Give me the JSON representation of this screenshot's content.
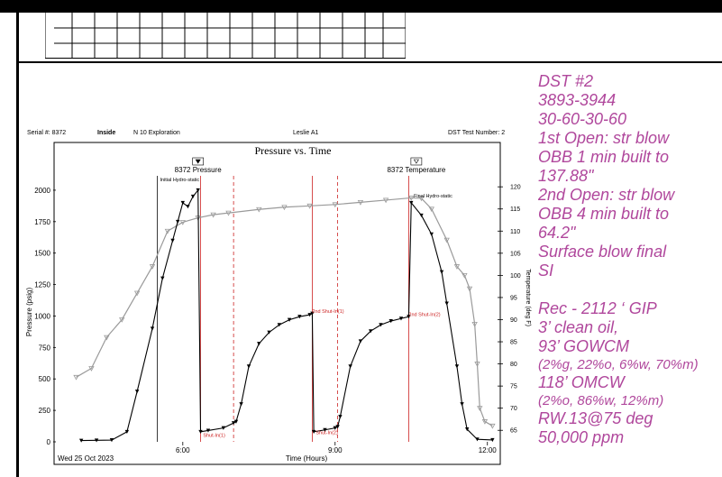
{
  "header": {
    "serial": "Serial #:  8372",
    "inside": "Inside",
    "company": "N 10 Exploration",
    "lease": "Leslie A1",
    "dst_test": "DST Test Number: 2"
  },
  "notes": [
    {
      "text": "DST #2",
      "size": "big"
    },
    {
      "text": "3893-3944",
      "size": "big"
    },
    {
      "text": "30-60-30-60",
      "size": "big"
    },
    {
      "text": "1st Open: str blow",
      "size": "big"
    },
    {
      "text": "OBB 1 min built to",
      "size": "big"
    },
    {
      "text": "137.88\"",
      "size": "big"
    },
    {
      "text": "2nd Open: str blow",
      "size": "big"
    },
    {
      "text": "OBB 4 min built to",
      "size": "big"
    },
    {
      "text": "64.2\"",
      "size": "big"
    },
    {
      "text": "Surface blow final",
      "size": "big"
    },
    {
      "text": "SI",
      "size": "big"
    },
    {
      "text": "",
      "size": "big"
    },
    {
      "text": "Rec - 2112 ‘ GIP",
      "size": "big"
    },
    {
      "text": "3’ clean oil,",
      "size": "big"
    },
    {
      "text": "93’ GOWCM",
      "size": "big"
    },
    {
      "text": "(2%g, 22%o, 6%w, 70%m)",
      "size": "small"
    },
    {
      "text": "118’ OMCW",
      "size": "big"
    },
    {
      "text": "(2%o, 86%w, 12%m)",
      "size": "small"
    },
    {
      "text": "RW.13@75 deg",
      "size": "big"
    },
    {
      "text": "50,000 ppm",
      "size": "big"
    }
  ],
  "chart_data": {
    "type": "line",
    "title": "Pressure vs. Time",
    "xlabel": "Time (Hours)",
    "ylabel": "Pressure (psig)",
    "y2label": "Temperature (deg F)",
    "date_label": "Wed 25 Oct 2023",
    "xlim": [
      3.5,
      12.2
    ],
    "ylim": [
      0,
      2150
    ],
    "y2lim": [
      62.4,
      123.5
    ],
    "x_ticks": [
      {
        "value": 6,
        "label": "6:00"
      },
      {
        "value": 9,
        "label": "9:00"
      },
      {
        "value": 12,
        "label": "12:00"
      }
    ],
    "y_ticks": [
      0,
      250,
      500,
      750,
      1000,
      1250,
      1500,
      1750,
      2000
    ],
    "y2_ticks": [
      65,
      70,
      75,
      80,
      85,
      90,
      95,
      100,
      105,
      110,
      115,
      120
    ],
    "series": [
      {
        "name": "8372 Pressure",
        "color": "#000000",
        "points": [
          [
            4.0,
            10
          ],
          [
            4.3,
            12
          ],
          [
            4.6,
            14
          ],
          [
            4.9,
            80
          ],
          [
            5.1,
            400
          ],
          [
            5.4,
            900
          ],
          [
            5.6,
            1300
          ],
          [
            5.8,
            1600
          ],
          [
            5.9,
            1750
          ],
          [
            6.0,
            1900
          ],
          [
            6.1,
            1870
          ],
          [
            6.2,
            1950
          ],
          [
            6.3,
            2000
          ],
          [
            6.35,
            80
          ],
          [
            6.5,
            90
          ],
          [
            6.8,
            110
          ],
          [
            7.0,
            150
          ],
          [
            7.05,
            160
          ],
          [
            7.15,
            300
          ],
          [
            7.3,
            600
          ],
          [
            7.5,
            780
          ],
          [
            7.7,
            870
          ],
          [
            7.9,
            930
          ],
          [
            8.1,
            970
          ],
          [
            8.3,
            995
          ],
          [
            8.5,
            1010
          ],
          [
            8.55,
            1020
          ],
          [
            8.58,
            80
          ],
          [
            8.8,
            95
          ],
          [
            9.0,
            110
          ],
          [
            9.05,
            120
          ],
          [
            9.1,
            200
          ],
          [
            9.3,
            600
          ],
          [
            9.5,
            800
          ],
          [
            9.7,
            880
          ],
          [
            9.9,
            930
          ],
          [
            10.1,
            960
          ],
          [
            10.3,
            980
          ],
          [
            10.45,
            995
          ],
          [
            10.5,
            1900
          ],
          [
            10.7,
            1800
          ],
          [
            10.9,
            1650
          ],
          [
            11.1,
            1350
          ],
          [
            11.2,
            1100
          ],
          [
            11.4,
            600
          ],
          [
            11.5,
            300
          ],
          [
            11.6,
            100
          ],
          [
            11.8,
            20
          ],
          [
            12.1,
            15
          ]
        ]
      },
      {
        "name": "8372 Temperature",
        "color": "#9a9a9a",
        "points": [
          [
            3.9,
            77
          ],
          [
            4.2,
            79
          ],
          [
            4.5,
            86
          ],
          [
            4.8,
            90
          ],
          [
            5.1,
            96
          ],
          [
            5.4,
            102
          ],
          [
            5.7,
            110
          ],
          [
            6.0,
            112
          ],
          [
            6.3,
            113
          ],
          [
            6.6,
            113.7
          ],
          [
            6.9,
            114.1
          ],
          [
            7.5,
            114.9
          ],
          [
            8.0,
            115.4
          ],
          [
            8.5,
            115.7
          ],
          [
            9.0,
            116
          ],
          [
            9.5,
            116.5
          ],
          [
            10.0,
            117
          ],
          [
            10.5,
            117.5
          ],
          [
            10.7,
            117.4
          ],
          [
            10.9,
            115
          ],
          [
            11.2,
            108
          ],
          [
            11.4,
            102
          ],
          [
            11.55,
            100
          ],
          [
            11.65,
            97
          ],
          [
            11.75,
            89
          ],
          [
            11.8,
            80
          ],
          [
            11.85,
            70
          ],
          [
            11.95,
            67
          ],
          [
            12.1,
            66
          ]
        ]
      }
    ],
    "markers": [
      {
        "x": 5.55,
        "label": "Initial Hydro-static"
      },
      {
        "x": 10.55,
        "label": "Final Hydro-static"
      }
    ],
    "annotations": [
      {
        "x": 8.55,
        "y": 1025,
        "label": "2nd Shut-In(1)"
      },
      {
        "x": 10.45,
        "y": 1000,
        "label": "2nd Shut-In(2)"
      },
      {
        "x": 6.4,
        "y": 40,
        "label": "Shut-In(1)"
      },
      {
        "x": 8.62,
        "y": 60,
        "label": "Shut-In(2)"
      }
    ],
    "event_lines": [
      {
        "x": 5.5,
        "style": "solid",
        "color": "#000000"
      },
      {
        "x": 6.35,
        "style": "solid",
        "color": "#cc2222"
      },
      {
        "x": 7.0,
        "style": "dashed",
        "color": "#cc2222"
      },
      {
        "x": 8.55,
        "style": "solid",
        "color": "#cc2222"
      },
      {
        "x": 9.05,
        "style": "dashed",
        "color": "#cc2222"
      },
      {
        "x": 10.45,
        "style": "solid",
        "color": "#cc2222"
      }
    ]
  }
}
